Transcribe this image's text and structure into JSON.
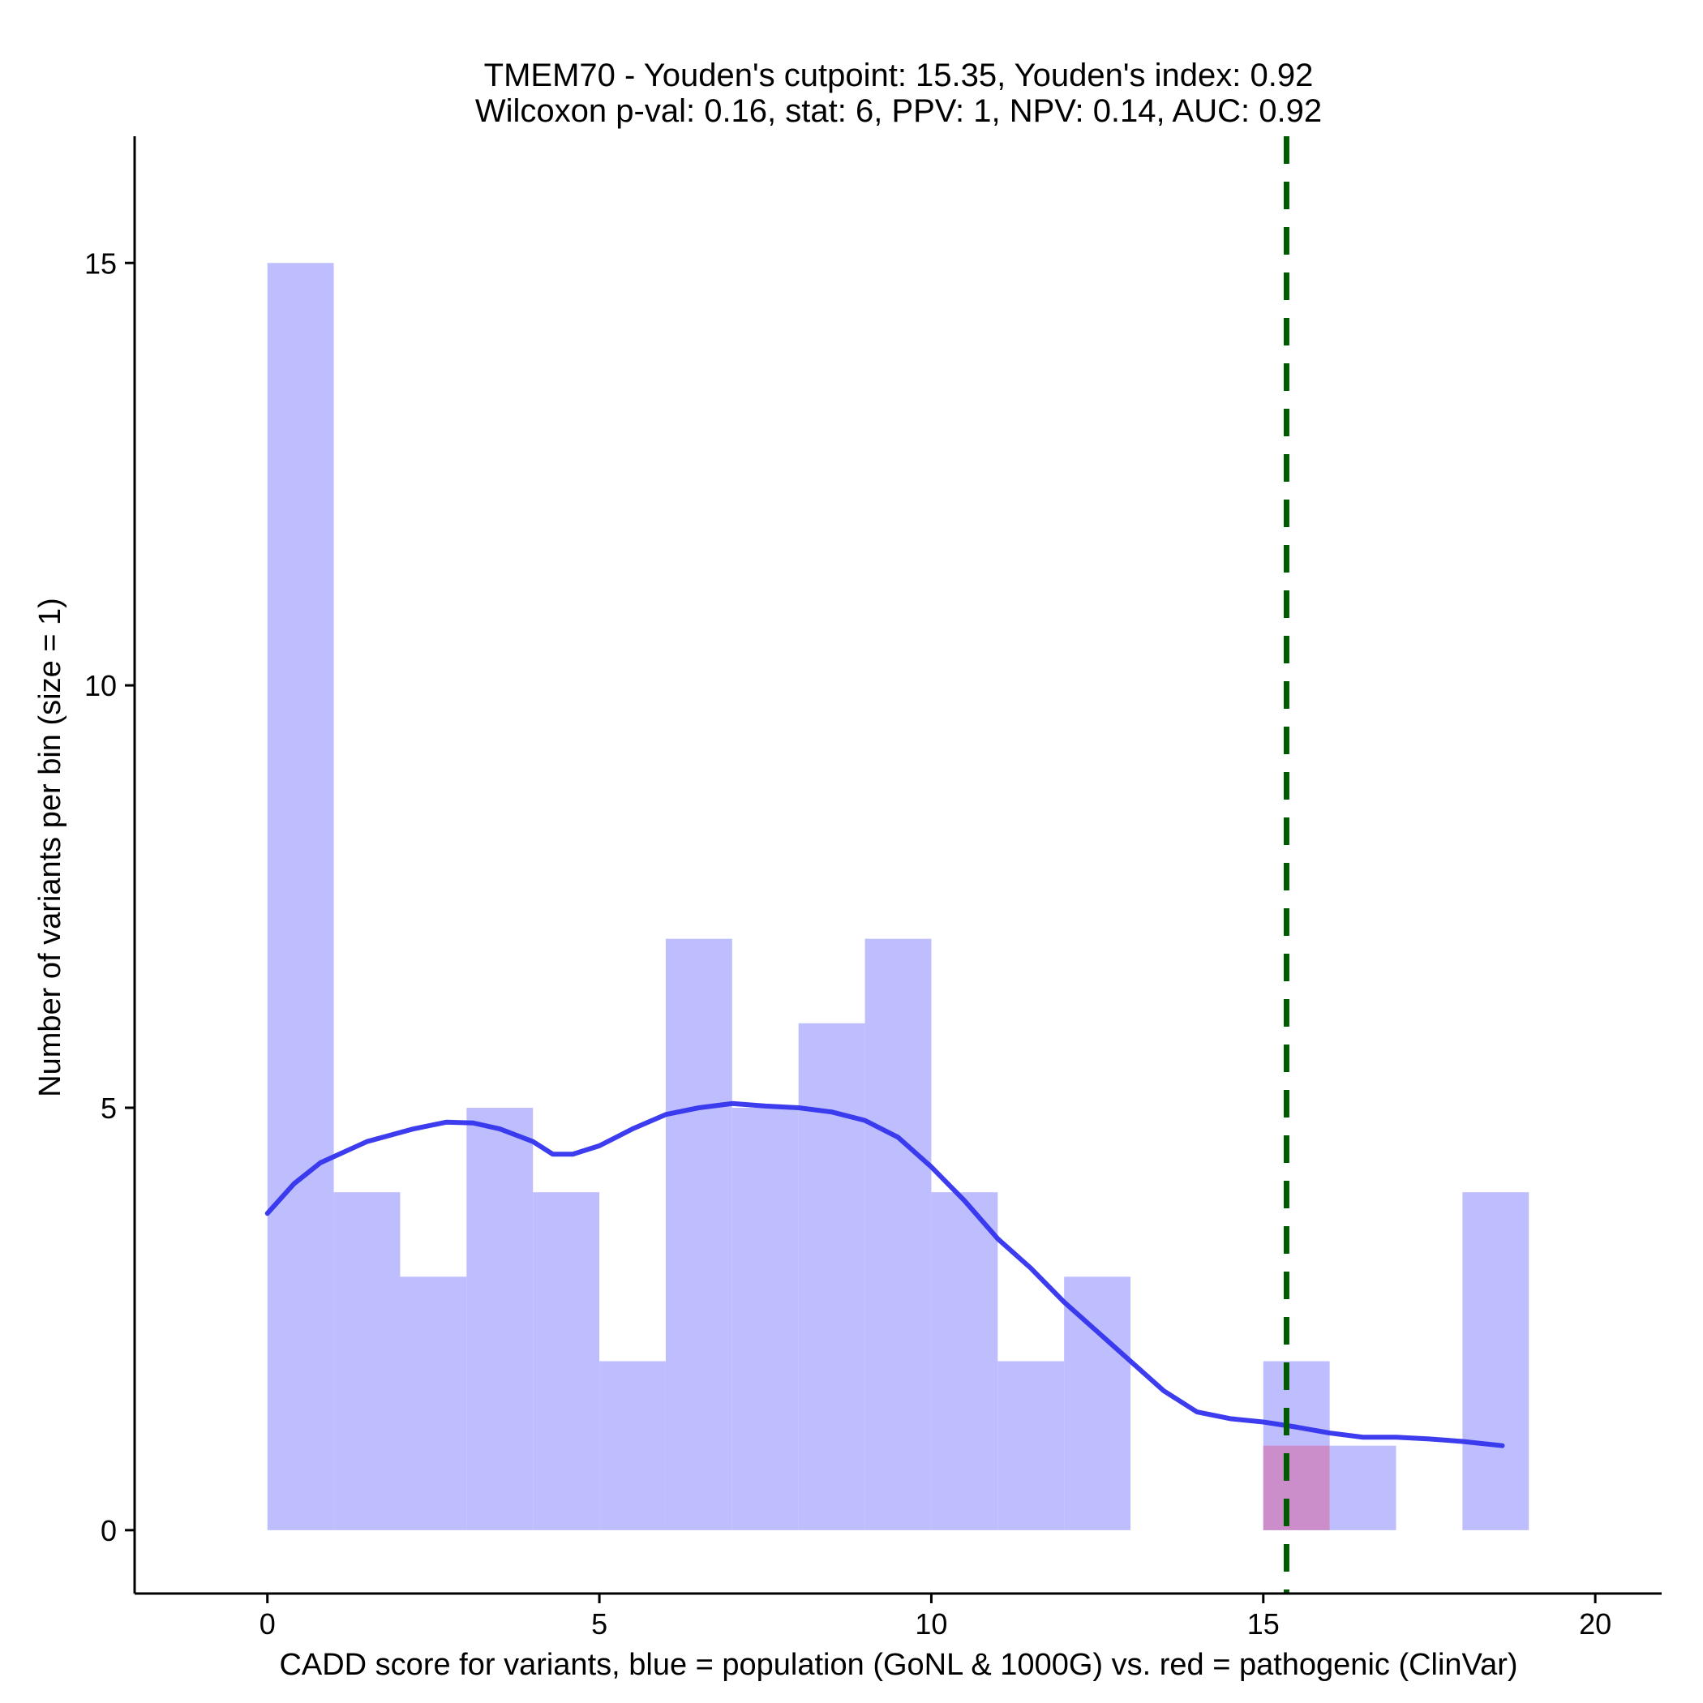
{
  "chart_data": {
    "type": "bar",
    "title_line1": "TMEM70 - Youden's cutpoint: 15.35, Youden's index: 0.92",
    "title_line2": "Wilcoxon p-val: 0.16, stat: 6, PPV: 1, NPV: 0.14, AUC: 0.92",
    "xlabel": "CADD score for variants, blue = population (GoNL & 1000G) vs. red = pathogenic (ClinVar)",
    "ylabel": "Number of variants per bin (size = 1)",
    "xlim": [
      -2,
      21
    ],
    "ylim": [
      -0.75,
      16.5
    ],
    "x_ticks": [
      0,
      5,
      10,
      15,
      20
    ],
    "y_ticks": [
      0,
      5,
      10,
      15
    ],
    "bin_width": 1,
    "series": [
      {
        "group": "population",
        "color": "#b3b3ff",
        "bins": [
          {
            "start": 0,
            "count": 15
          },
          {
            "start": 1,
            "count": 4
          },
          {
            "start": 2,
            "count": 3
          },
          {
            "start": 3,
            "count": 5
          },
          {
            "start": 4,
            "count": 4
          },
          {
            "start": 5,
            "count": 2
          },
          {
            "start": 6,
            "count": 7
          },
          {
            "start": 7,
            "count": 5
          },
          {
            "start": 8,
            "count": 6
          },
          {
            "start": 9,
            "count": 7
          },
          {
            "start": 10,
            "count": 4
          },
          {
            "start": 11,
            "count": 2
          },
          {
            "start": 12,
            "count": 3
          },
          {
            "start": 13,
            "count": 0
          },
          {
            "start": 14,
            "count": 0
          },
          {
            "start": 15,
            "count": 2
          },
          {
            "start": 16,
            "count": 1
          },
          {
            "start": 17,
            "count": 0
          },
          {
            "start": 18,
            "count": 4
          }
        ]
      },
      {
        "group": "pathogenic",
        "color": "#cc88c4",
        "bins": [
          {
            "start": 15,
            "count": 1
          }
        ]
      }
    ],
    "density_curve": {
      "color": "#3333ee",
      "points": [
        [
          0,
          3.75
        ],
        [
          0.4,
          4.1
        ],
        [
          0.8,
          4.35
        ],
        [
          1.5,
          4.6
        ],
        [
          2.2,
          4.75
        ],
        [
          2.7,
          4.83
        ],
        [
          3.1,
          4.82
        ],
        [
          3.5,
          4.75
        ],
        [
          4.0,
          4.6
        ],
        [
          4.3,
          4.45
        ],
        [
          4.6,
          4.45
        ],
        [
          5.0,
          4.55
        ],
        [
          5.5,
          4.75
        ],
        [
          6.0,
          4.92
        ],
        [
          6.5,
          5.0
        ],
        [
          7.0,
          5.05
        ],
        [
          7.5,
          5.02
        ],
        [
          8.0,
          5.0
        ],
        [
          8.5,
          4.95
        ],
        [
          9.0,
          4.85
        ],
        [
          9.5,
          4.65
        ],
        [
          10.0,
          4.3
        ],
        [
          10.5,
          3.9
        ],
        [
          11.0,
          3.45
        ],
        [
          11.5,
          3.1
        ],
        [
          12.0,
          2.7
        ],
        [
          12.5,
          2.35
        ],
        [
          13.0,
          2.0
        ],
        [
          13.5,
          1.65
        ],
        [
          14.0,
          1.4
        ],
        [
          14.5,
          1.32
        ],
        [
          15.0,
          1.28
        ],
        [
          15.5,
          1.22
        ],
        [
          16.0,
          1.15
        ],
        [
          16.5,
          1.1
        ],
        [
          17.0,
          1.1
        ],
        [
          17.5,
          1.08
        ],
        [
          18.0,
          1.05
        ],
        [
          18.6,
          1.0
        ]
      ]
    },
    "cutpoint": {
      "x": 15.35,
      "color": "#005a00"
    }
  }
}
